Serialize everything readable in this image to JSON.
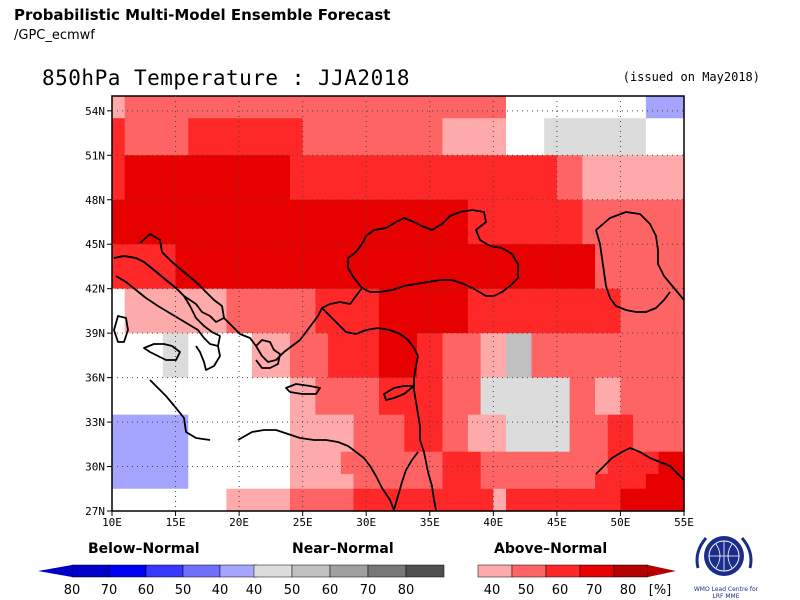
{
  "header": {
    "title": "Probabilistic Multi-Model Ensemble Forecast",
    "subtitle": "/GPC_ecmwf"
  },
  "map": {
    "title": "850hPa Temperature : JJA2018",
    "issued": "(issued on May2018)",
    "lon_range": [
      10,
      55
    ],
    "lat_range": [
      27,
      55
    ],
    "lat_ticks": [
      "54N",
      "51N",
      "48N",
      "45N",
      "42N",
      "39N",
      "36N",
      "33N",
      "30N",
      "27N"
    ],
    "lon_ticks": [
      "10E",
      "15E",
      "20E",
      "25E",
      "30E",
      "35E",
      "40E",
      "45E",
      "50E",
      "55E"
    ],
    "grid": "dotted"
  },
  "legend": {
    "below_label": "Below–Normal",
    "near_label": "Near–Normal",
    "above_label": "Above–Normal",
    "below_values": [
      "80",
      "70",
      "60",
      "50",
      "40"
    ],
    "near_values": [
      "40",
      "50",
      "60",
      "70",
      "80"
    ],
    "above_values": [
      "40",
      "50",
      "60",
      "70",
      "80"
    ],
    "unit": "[%]",
    "below_colors": [
      "#0000c8",
      "#0000f0",
      "#3737ff",
      "#6e6eff",
      "#a5a5ff"
    ],
    "near_colors": [
      "#dcdcdc",
      "#c0c0c0",
      "#a0a0a0",
      "#787878",
      "#505050"
    ],
    "above_colors": [
      "#ffaaaa",
      "#ff6464",
      "#ff2828",
      "#e60000",
      "#b40000"
    ]
  },
  "logo": {
    "text": "WMO Lead Centre for LRF MME",
    "icon": "wmo-emblem-icon"
  },
  "chart_data": {
    "type": "heatmap",
    "title": "850hPa Temperature : JJA2018",
    "x": "longitude",
    "y": "latitude",
    "xlim": [
      10,
      55
    ],
    "ylim": [
      27,
      55
    ],
    "categories": [
      "white",
      "below-40",
      "near-40",
      "near-50",
      "above-40",
      "above-50",
      "above-60",
      "above-70"
    ],
    "rows": [
      {
        "lat": [
          53.5,
          55
        ],
        "cells": [
          [
            10,
            11,
            "above-40"
          ],
          [
            11,
            41,
            "above-50"
          ],
          [
            41,
            44,
            "white"
          ],
          [
            44,
            50,
            "white"
          ],
          [
            50,
            52,
            "white"
          ],
          [
            52,
            55,
            "below-40"
          ]
        ]
      },
      {
        "lat": [
          51,
          53.5
        ],
        "cells": [
          [
            10,
            11,
            "above-60"
          ],
          [
            11,
            16,
            "above-50"
          ],
          [
            16,
            25,
            "above-60"
          ],
          [
            25,
            31,
            "above-50"
          ],
          [
            31,
            36,
            "above-50"
          ],
          [
            36,
            41,
            "above-40"
          ],
          [
            41,
            44,
            "white"
          ],
          [
            44,
            52,
            "near-40"
          ],
          [
            52,
            55,
            "white"
          ]
        ]
      },
      {
        "lat": [
          48,
          51
        ],
        "cells": [
          [
            10,
            11,
            "above-60"
          ],
          [
            11,
            24,
            "above-70"
          ],
          [
            24,
            39,
            "above-60"
          ],
          [
            39,
            45,
            "above-60"
          ],
          [
            45,
            47,
            "above-50"
          ],
          [
            47,
            55,
            "above-40"
          ]
        ]
      },
      {
        "lat": [
          45,
          48
        ],
        "cells": [
          [
            10,
            19,
            "above-70"
          ],
          [
            19,
            38,
            "above-70"
          ],
          [
            38,
            45,
            "above-60"
          ],
          [
            45,
            47,
            "above-60"
          ],
          [
            47,
            55,
            "above-50"
          ]
        ]
      },
      {
        "lat": [
          42,
          45
        ],
        "cells": [
          [
            10,
            15,
            "above-60"
          ],
          [
            15,
            25,
            "above-70"
          ],
          [
            25,
            41,
            "above-70"
          ],
          [
            41,
            45,
            "above-70"
          ],
          [
            45,
            48,
            "above-70"
          ],
          [
            48,
            55,
            "above-50"
          ]
        ]
      },
      {
        "lat": [
          39,
          42
        ],
        "cells": [
          [
            10,
            11,
            "white"
          ],
          [
            11,
            15,
            "above-40"
          ],
          [
            15,
            19,
            "above-40"
          ],
          [
            19,
            26,
            "above-50"
          ],
          [
            26,
            31,
            "above-60"
          ],
          [
            31,
            38,
            "above-70"
          ],
          [
            38,
            41,
            "above-60"
          ],
          [
            41,
            48,
            "above-60"
          ],
          [
            48,
            50,
            "above-60"
          ],
          [
            50,
            55,
            "above-50"
          ]
        ]
      },
      {
        "lat": [
          36,
          39
        ],
        "cells": [
          [
            10,
            14,
            "white"
          ],
          [
            14,
            16,
            "near-40"
          ],
          [
            16,
            21,
            "white"
          ],
          [
            21,
            24,
            "above-40"
          ],
          [
            24,
            27,
            "above-50"
          ],
          [
            27,
            31,
            "above-60"
          ],
          [
            31,
            34,
            "above-70"
          ],
          [
            34,
            36,
            "above-60"
          ],
          [
            36,
            39,
            "above-50"
          ],
          [
            39,
            41,
            "above-40"
          ],
          [
            41,
            43,
            "near-50"
          ],
          [
            43,
            46,
            "above-50"
          ],
          [
            46,
            52,
            "above-50"
          ],
          [
            52,
            55,
            "above-50"
          ]
        ]
      },
      {
        "lat": [
          33.5,
          36
        ],
        "cells": [
          [
            10,
            24,
            "white"
          ],
          [
            24,
            26,
            "above-40"
          ],
          [
            26,
            31,
            "above-50"
          ],
          [
            31,
            34,
            "above-60"
          ],
          [
            34,
            36,
            "above-60"
          ],
          [
            36,
            39,
            "above-50"
          ],
          [
            39,
            46,
            "near-40"
          ],
          [
            46,
            48,
            "above-50"
          ],
          [
            48,
            50,
            "above-40"
          ],
          [
            50,
            55,
            "above-50"
          ]
        ]
      },
      {
        "lat": [
          31,
          33.5
        ],
        "cells": [
          [
            10,
            16,
            "below-40"
          ],
          [
            16,
            24,
            "white"
          ],
          [
            24,
            29,
            "above-40"
          ],
          [
            29,
            33,
            "above-50"
          ],
          [
            33,
            36,
            "above-60"
          ],
          [
            36,
            38,
            "above-50"
          ],
          [
            38,
            41,
            "above-40"
          ],
          [
            41,
            46,
            "near-40"
          ],
          [
            46,
            49,
            "above-50"
          ],
          [
            49,
            51,
            "above-60"
          ],
          [
            51,
            55,
            "above-50"
          ]
        ]
      },
      {
        "lat": [
          29.5,
          31
        ],
        "cells": [
          [
            10,
            16,
            "below-40"
          ],
          [
            16,
            24,
            "white"
          ],
          [
            24,
            28,
            "above-40"
          ],
          [
            28,
            31,
            "above-50"
          ],
          [
            31,
            36,
            "above-50"
          ],
          [
            36,
            39,
            "above-60"
          ],
          [
            39,
            47,
            "above-50"
          ],
          [
            47,
            49,
            "above-50"
          ],
          [
            49,
            53,
            "above-60"
          ],
          [
            53,
            55,
            "above-70"
          ]
        ]
      },
      {
        "lat": [
          28.5,
          29.5
        ],
        "cells": [
          [
            10,
            16,
            "below-40"
          ],
          [
            16,
            24,
            "white"
          ],
          [
            24,
            29,
            "above-40"
          ],
          [
            29,
            36,
            "above-50"
          ],
          [
            36,
            39,
            "above-60"
          ],
          [
            39,
            48,
            "above-50"
          ],
          [
            48,
            52,
            "above-60"
          ],
          [
            52,
            55,
            "above-70"
          ]
        ]
      },
      {
        "lat": [
          27,
          28.5
        ],
        "cells": [
          [
            10,
            19,
            "white"
          ],
          [
            19,
            24,
            "above-40"
          ],
          [
            24,
            29,
            "above-50"
          ],
          [
            29,
            40,
            "above-60"
          ],
          [
            40,
            41,
            "above-40"
          ],
          [
            41,
            46,
            "above-60"
          ],
          [
            46,
            50,
            "above-60"
          ],
          [
            50,
            55,
            "above-70"
          ]
        ]
      }
    ]
  }
}
